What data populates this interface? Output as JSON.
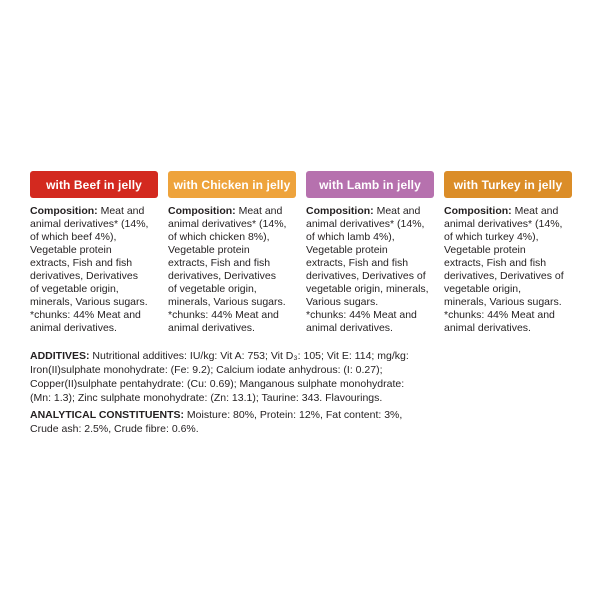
{
  "meta": {
    "background_color": "#ffffff",
    "text_color": "#231f20"
  },
  "columns": [
    {
      "header": "with Beef in jelly",
      "header_color": "#d3291f",
      "composition_label": "Composition:",
      "composition_text": " Meat and\nanimal derivatives* (14%,\nof which beef 4%),\nVegetable protein\nextracts, Fish and fish\nderivatives, Derivatives\nof vegetable origin,\nminerals, Various sugars.\n*chunks: 44% Meat and\nanimal derivatives."
    },
    {
      "header": "with Chicken in jelly",
      "header_color": "#eea33c",
      "composition_label": "Composition:",
      "composition_text": " Meat and\nanimal derivatives* (14%,\nof which chicken 8%),\nVegetable protein\nextracts, Fish and fish\nderivatives, Derivatives\nof vegetable origin,\nminerals, Various sugars.\n*chunks: 44% Meat and\nanimal derivatives."
    },
    {
      "header": "with Lamb in jelly",
      "header_color": "#b671ae",
      "composition_label": "Composition:",
      "composition_text": " Meat and\nanimal derivatives* (14%,\nof which lamb 4%),\nVegetable protein\nextracts, Fish and fish\nderivatives, Derivatives of\nvegetable origin, minerals,\nVarious sugars.\n*chunks: 44% Meat and\nanimal derivatives."
    },
    {
      "header": "with Turkey in jelly",
      "header_color": "#db8d28",
      "composition_label": "Composition:",
      "composition_text": " Meat and\nanimal derivatives* (14%,\nof which turkey 4%),\nVegetable protein\nextracts, Fish and fish\nderivatives, Derivatives of\nvegetable origin,\nminerals, Various sugars.\n*chunks: 44% Meat and\nanimal derivatives."
    }
  ],
  "additives": {
    "label": "ADDITIVES:",
    "text": " Nutritional additives: IU/kg: Vit A: 753; Vit D₃: 105; Vit E: 114; mg/kg:\nIron(II)sulphate monohydrate: (Fe: 9.2); Calcium iodate anhydrous: (I: 0.27);\nCopper(II)sulphate pentahydrate: (Cu: 0.69); Manganous sulphate monohydrate:\n(Mn: 1.3); Zinc sulphate monohydrate: (Zn: 13.1); Taurine: 343. Flavourings."
  },
  "analytical": {
    "label": "ANALYTICAL CONSTITUENTS:",
    "text": " Moisture: 80%, Protein: 12%, Fat content: 3%,\nCrude ash: 2.5%, Crude fibre: 0.6%."
  }
}
